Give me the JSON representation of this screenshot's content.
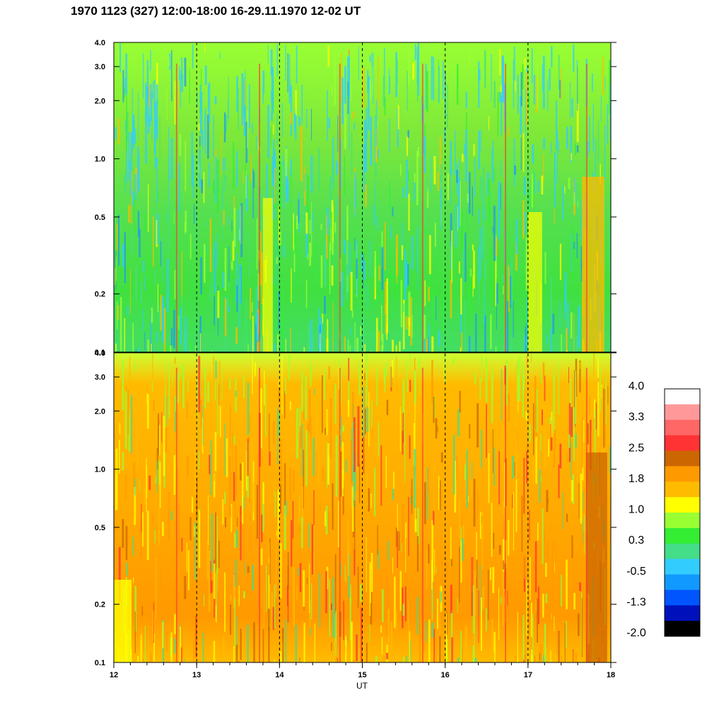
{
  "title": "1970 1123 (327) 12:00-18:00 16-29.11.1970  12-02 UT",
  "chart_data": {
    "type": "heatmap",
    "title": "1970 1123 (327) 12:00-18:00 16-29.11.1970  12-02 UT",
    "xlabel": "UT",
    "ylabel": "",
    "xlim": [
      12,
      18
    ],
    "x_ticks": [
      12,
      13,
      14,
      15,
      16,
      17,
      18
    ],
    "x_tick_labels": [
      "12",
      "13",
      "14",
      "15",
      "16",
      "17",
      "18"
    ],
    "y_scale": "log",
    "panels": [
      {
        "name": "upper",
        "ylim": [
          0.1,
          4.0
        ],
        "y_ticks": [
          0.1,
          0.2,
          0.5,
          1.0,
          2.0,
          3.0,
          4.0
        ],
        "y_tick_labels": [
          "0.1",
          "0.2",
          "0.5",
          "1.0",
          "2.0",
          "3.0",
          "4.0"
        ],
        "dominant_levels": "green / yellow-green (0.3 to 1.0), yellow-orange near 12.7-13.8 and 17-18 UT"
      },
      {
        "name": "lower",
        "ylim": [
          0.1,
          4.0
        ],
        "y_ticks": [
          0.1,
          0.2,
          0.5,
          1.0,
          2.0,
          3.0,
          4.0
        ],
        "y_tick_labels": [
          "0.1",
          "0.2",
          "0.5",
          "1.0",
          "2.0",
          "3.0",
          "4.0"
        ],
        "dominant_levels": "orange / yellow (1.0 to 2.5), darker red-brown near 17.6-18 UT"
      }
    ],
    "hour_markers": [
      13,
      14,
      15,
      16,
      17
    ],
    "colorbar": {
      "labels": [
        "4.0",
        "3.3",
        "2.5",
        "1.8",
        "1.0",
        "0.3",
        "-0.5",
        "-1.3",
        "-2.0"
      ],
      "colors": [
        "#ffffff",
        "#ff9999",
        "#ff6666",
        "#ff3333",
        "#cc6600",
        "#ff9900",
        "#ffbb00",
        "#ffff00",
        "#99ff33",
        "#33ee33",
        "#44dd88",
        "#33ccff",
        "#1199ff",
        "#0055ff",
        "#0011bb",
        "#000000"
      ]
    }
  }
}
